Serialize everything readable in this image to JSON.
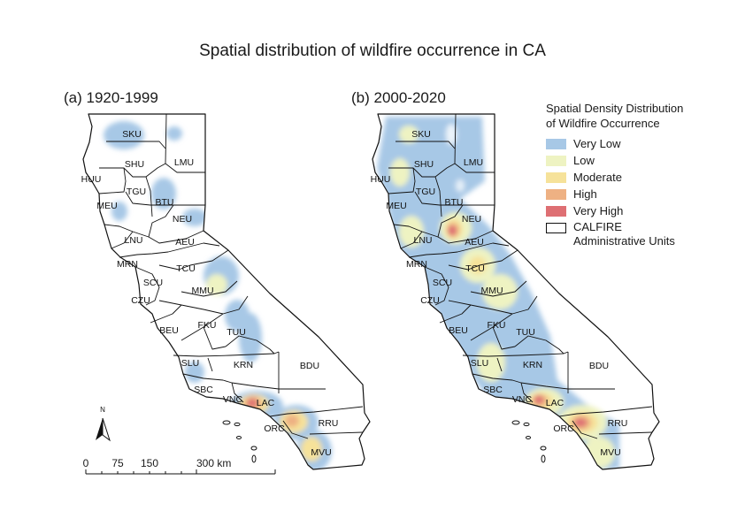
{
  "title": "Spatial distribution of wildfire occurrence in CA",
  "panels": {
    "left": "(a) 1920-1999",
    "right": "(b) 2000-2020"
  },
  "legend": {
    "title_line1": "Spatial Density Distribution",
    "title_line2": "of Wildfire Occurrence",
    "items": [
      {
        "label": "Very Low",
        "color": "#a7c8e6"
      },
      {
        "label": "Low",
        "color": "#eef3c2"
      },
      {
        "label": "Moderate",
        "color": "#f6e29a"
      },
      {
        "label": "High",
        "color": "#eeb183"
      },
      {
        "label": "Very High",
        "color": "#de6f73"
      }
    ],
    "boundary_line1": "CALFIRE",
    "boundary_line2": "Administrative Units"
  },
  "north_arrow": "N",
  "scale": {
    "ticks": [
      "0",
      "75",
      "150",
      "300 km"
    ]
  },
  "units": [
    "SKU",
    "SHU",
    "LMU",
    "HUU",
    "TGU",
    "MEU",
    "BTU",
    "NEU",
    "LNU",
    "AEU",
    "MRN",
    "TCU",
    "SCU",
    "MMU",
    "CZU",
    "BEU",
    "FKU",
    "TUU",
    "SLU",
    "KRN",
    "BDU",
    "SBC",
    "VNC",
    "LAC",
    "ORC",
    "RRU",
    "MVU"
  ]
}
